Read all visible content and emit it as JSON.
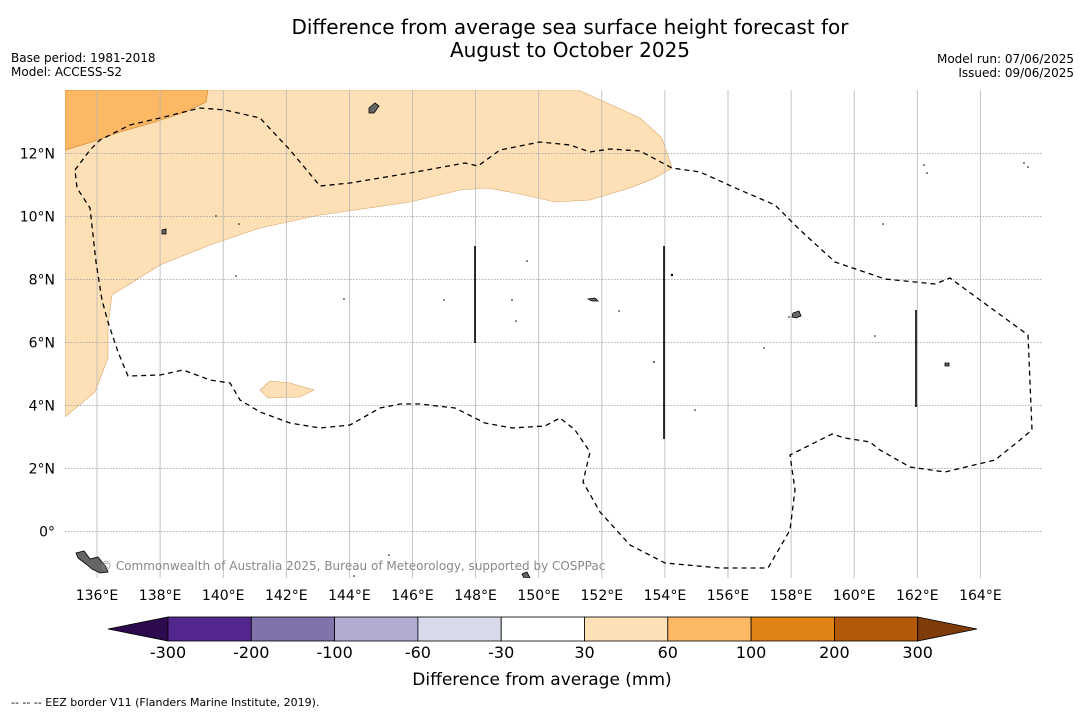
{
  "title": {
    "line1": "Difference from average sea surface height forecast for",
    "line2": "August to October 2025"
  },
  "meta_left": {
    "base_period": "Base period: 1981-2018",
    "model": "Model: ACCESS-S2"
  },
  "meta_right": {
    "model_run": "Model run: 07/06/2025",
    "issued": "Issued: 09/06/2025"
  },
  "axes": {
    "lon_labels": [
      "136°E",
      "138°E",
      "140°E",
      "142°E",
      "144°E",
      "146°E",
      "148°E",
      "150°E",
      "152°E",
      "154°E",
      "156°E",
      "158°E",
      "160°E",
      "162°E",
      "164°E"
    ],
    "lat_labels": [
      "12°N",
      "10°N",
      "8°N",
      "6°N",
      "4°N",
      "2°N",
      "0°"
    ]
  },
  "credit": "© Commonwealth of Australia 2025, Bureau of Meteorology, supported by COSPPac",
  "colorbar": {
    "title": "Difference from average (mm)",
    "tick_labels": [
      "-300",
      "-200",
      "-100",
      "-60",
      "-30",
      "30",
      "60",
      "100",
      "200",
      "300"
    ],
    "colors": {
      "below_-300": "#2d0a4e",
      "-300_-200": "#54278f",
      "-200_-100": "#8073ac",
      "-100_-60": "#b2abd2",
      "-60_-30": "#d8daeb",
      "-30_30": "#ffffff",
      "30_60": "#fee0b6",
      "60_100": "#fdb863",
      "100_200": "#e08214",
      "200_300": "#b35806",
      "above_300": "#7f3b08"
    }
  },
  "footnote": "-- -- -- EEZ border V11 (Flanders Marine Institute, 2019)."
}
